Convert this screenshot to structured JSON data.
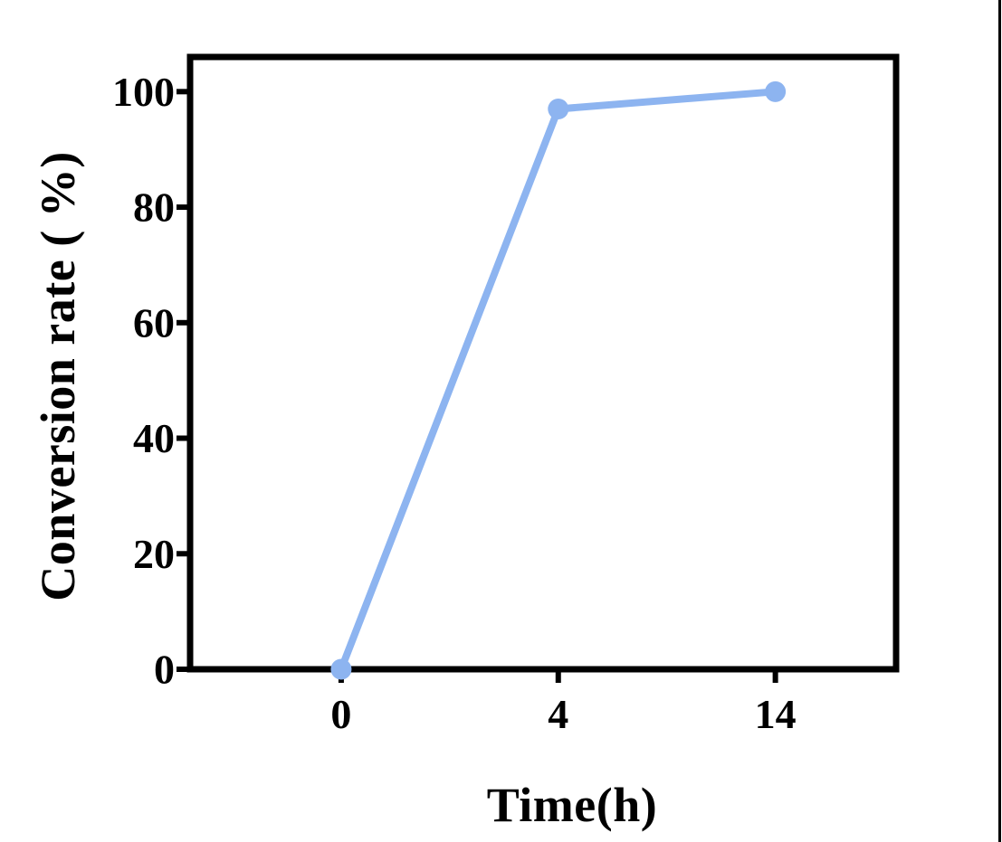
{
  "chart_data": {
    "type": "line",
    "title": "",
    "xlabel": "Time(h)",
    "ylabel": "Conversion rate ( %)",
    "categories": [
      "0",
      "4",
      "14"
    ],
    "series": [
      {
        "name": "Conversion rate",
        "values": [
          0,
          97,
          100
        ]
      }
    ],
    "yticks": [
      0,
      20,
      40,
      60,
      80,
      100
    ],
    "ylim": [
      0,
      106
    ],
    "xlim_note": "categorical x axis, ticks evenly spaced",
    "grid": false,
    "legend": false,
    "line_color": "#8DB4F0",
    "marker": "circle",
    "marker_color": "#8DB4F0",
    "axis_color": "#000000",
    "tick_label_color": "#000000"
  },
  "page": {
    "background": "#ffffff",
    "right_edge_line_color": "#000000"
  }
}
